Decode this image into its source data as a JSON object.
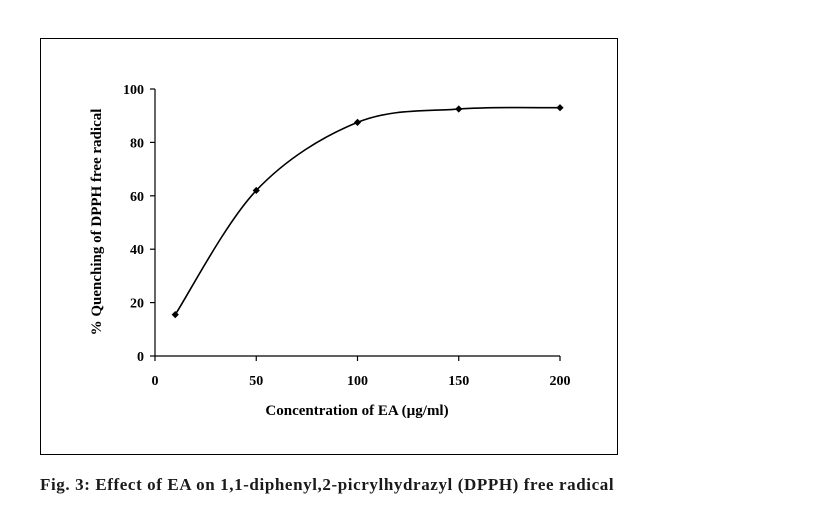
{
  "chart_data": {
    "type": "line",
    "xlabel": "Concentration of EA (µg/ml)",
    "ylabel": "% Quenching of DPPH free radical",
    "x": [
      10,
      50,
      100,
      150,
      200
    ],
    "series": [
      {
        "values": [
          15.5,
          62,
          87.5,
          92.5,
          93
        ]
      }
    ],
    "xlim": [
      0,
      200
    ],
    "ylim": [
      0,
      100
    ],
    "xticks": [
      0,
      50,
      100,
      150,
      200
    ],
    "yticks": [
      0,
      20,
      40,
      60,
      80,
      100
    ],
    "smooth": true,
    "grid": false,
    "legend": "none",
    "marker": "diamond",
    "line_color": "#000000"
  },
  "caption": "Fig. 3: Effect of EA on 1,1-diphenyl,2-picrylhydrazyl (DPPH) free radical"
}
